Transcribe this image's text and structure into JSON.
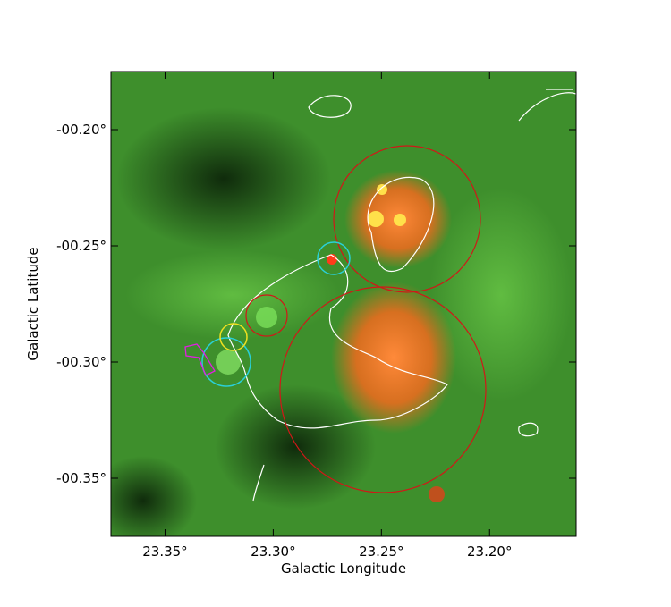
{
  "chart_data": {
    "type": "image",
    "x_label": "Galactic Longitude",
    "y_label": "Galactic Latitude",
    "xlim": [
      23.375,
      23.16
    ],
    "ylim": [
      -0.375,
      -0.175
    ],
    "xticks": [
      {
        "value": 23.35,
        "label": "23.35°"
      },
      {
        "value": 23.3,
        "label": "23.30°"
      },
      {
        "value": 23.25,
        "label": "23.25°"
      },
      {
        "value": 23.2,
        "label": "23.20°"
      }
    ],
    "yticks": [
      {
        "value": -0.2,
        "label": "-00.20°"
      },
      {
        "value": -0.25,
        "label": "-00.25°"
      },
      {
        "value": -0.3,
        "label": "-00.30°"
      },
      {
        "value": -0.35,
        "label": "-00.35°"
      }
    ]
  }
}
